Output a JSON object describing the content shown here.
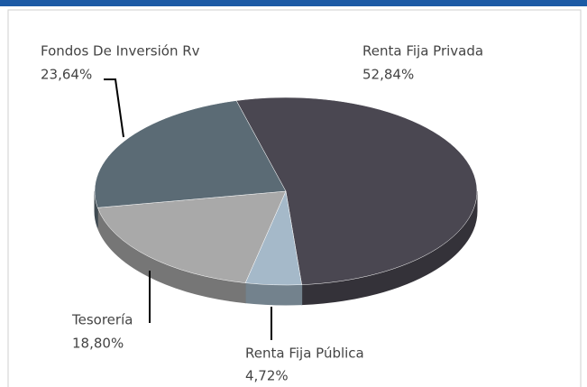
{
  "chart_data": {
    "type": "pie",
    "categories": [
      "Renta Fija Privada",
      "Renta Fija Pública",
      "Tesorería",
      "Fondos De Inversión Rv"
    ],
    "values": [
      52.84,
      4.72,
      18.8,
      23.64
    ],
    "value_labels": [
      "52,84%",
      "4,72%",
      "18,80%",
      "23,64%"
    ],
    "colors": [
      "#4a4751",
      "#a5b9c9",
      "#a9a9a9",
      "#5b6b75"
    ]
  }
}
